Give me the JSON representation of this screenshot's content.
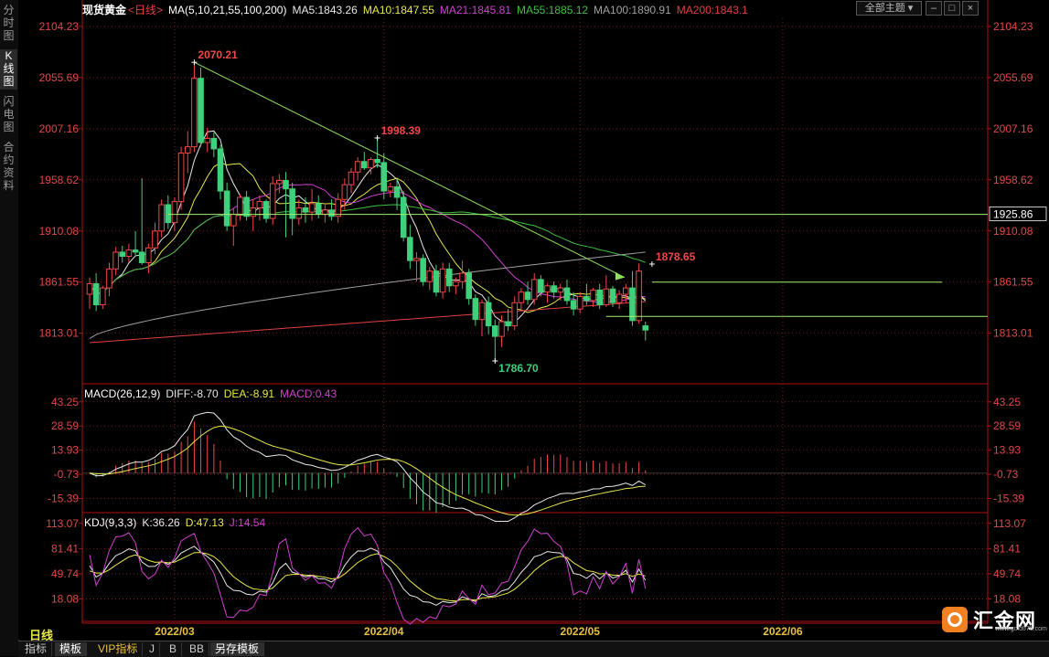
{
  "sidebar": {
    "tabs": [
      "分时图",
      "K线图",
      "闪电图",
      "合约资料"
    ],
    "active": 1
  },
  "header": {
    "symbol": "现货黄金",
    "period": "<日线>",
    "ma_label": "MA(5,10,21,55,100,200)",
    "ma_items": [
      {
        "text": "MA5:1843.26",
        "color": "#e8e8e8"
      },
      {
        "text": "MA10:1847.55",
        "color": "#e8e84a"
      },
      {
        "text": "MA21:1845.81",
        "color": "#d040d0"
      },
      {
        "text": "MA55:1885.12",
        "color": "#40c040"
      },
      {
        "text": "MA100:1890.91",
        "color": "#a0a0a0"
      },
      {
        "text": "MA200:1843.1",
        "color": "#e04040"
      }
    ],
    "theme_button": "全部主题",
    "window_buttons": [
      "–",
      "□",
      "×"
    ]
  },
  "colors": {
    "up": "#f04848",
    "down": "#3ed07a",
    "grid": "#7a1a1a",
    "axis": "#b01010",
    "priceLabel": "#e04848",
    "trend": "#8ee060",
    "level": "#a0f070"
  },
  "chart_data": [
    {
      "type": "candlestick",
      "title": "现货黄金 <日线>",
      "y_ticks": [
        2104.23,
        2055.69,
        2007.16,
        1958.62,
        1910.08,
        1861.55,
        1813.01
      ],
      "ylim": [
        1765,
        2112
      ],
      "x_ticks": [
        "2022/03",
        "2022/04",
        "2022/05",
        "2022/06"
      ],
      "x_tick_index": [
        13,
        45,
        75,
        106
      ],
      "candles": [
        [
          1850,
          1866,
          1836,
          1860
        ],
        [
          1860,
          1870,
          1834,
          1840
        ],
        [
          1840,
          1858,
          1836,
          1856
        ],
        [
          1856,
          1880,
          1848,
          1874
        ],
        [
          1874,
          1895,
          1868,
          1890
        ],
        [
          1890,
          1896,
          1880,
          1886
        ],
        [
          1886,
          1898,
          1880,
          1892
        ],
        [
          1892,
          1910,
          1886,
          1890
        ],
        [
          1890,
          1960,
          1878,
          1880
        ],
        [
          1880,
          1898,
          1870,
          1894
        ],
        [
          1894,
          1918,
          1888,
          1910
        ],
        [
          1910,
          1940,
          1904,
          1935
        ],
        [
          1935,
          1944,
          1912,
          1918
        ],
        [
          1918,
          1942,
          1910,
          1938
        ],
        [
          1938,
          1990,
          1930,
          1984
        ],
        [
          1984,
          2005,
          1965,
          1990
        ],
        [
          1990,
          2070,
          1985,
          2055
        ],
        [
          2055,
          2065,
          1990,
          1994
        ],
        [
          1994,
          2008,
          1985,
          1998
        ],
        [
          1998,
          2004,
          1980,
          1988
        ],
        [
          1988,
          1992,
          1940,
          1948
        ],
        [
          1948,
          1956,
          1910,
          1915
        ],
        [
          1915,
          1932,
          1896,
          1926
        ],
        [
          1926,
          1945,
          1920,
          1942
        ],
        [
          1942,
          1948,
          1920,
          1924
        ],
        [
          1924,
          1940,
          1910,
          1932
        ],
        [
          1932,
          1944,
          1920,
          1938
        ],
        [
          1938,
          1940,
          1918,
          1922
        ],
        [
          1922,
          1962,
          1916,
          1955
        ],
        [
          1955,
          1964,
          1946,
          1958
        ],
        [
          1958,
          1966,
          1904,
          1950
        ],
        [
          1950,
          1956,
          1906,
          1922
        ],
        [
          1922,
          1940,
          1916,
          1932
        ],
        [
          1932,
          1942,
          1918,
          1928
        ],
        [
          1928,
          1950,
          1920,
          1936
        ],
        [
          1936,
          1944,
          1922,
          1926
        ],
        [
          1926,
          1936,
          1918,
          1930
        ],
        [
          1930,
          1940,
          1920,
          1924
        ],
        [
          1924,
          1946,
          1918,
          1940
        ],
        [
          1940,
          1960,
          1930,
          1954
        ],
        [
          1954,
          1970,
          1946,
          1966
        ],
        [
          1966,
          1980,
          1958,
          1976
        ],
        [
          1976,
          1985,
          1968,
          1970
        ],
        [
          1970,
          1980,
          1964,
          1978
        ],
        [
          1978,
          1998,
          1970,
          1975
        ],
        [
          1975,
          1984,
          1940,
          1948
        ],
        [
          1948,
          1956,
          1942,
          1952
        ],
        [
          1952,
          1960,
          1930,
          1942
        ],
        [
          1942,
          1948,
          1900,
          1904
        ],
        [
          1904,
          1916,
          1874,
          1882
        ],
        [
          1882,
          1890,
          1862,
          1884
        ],
        [
          1884,
          1888,
          1858,
          1862
        ],
        [
          1862,
          1876,
          1854,
          1872
        ],
        [
          1872,
          1878,
          1848,
          1852
        ],
        [
          1852,
          1880,
          1846,
          1874
        ],
        [
          1874,
          1880,
          1852,
          1858
        ],
        [
          1858,
          1866,
          1850,
          1862
        ],
        [
          1862,
          1882,
          1855,
          1870
        ],
        [
          1870,
          1874,
          1840,
          1846
        ],
        [
          1846,
          1850,
          1820,
          1826
        ],
        [
          1826,
          1845,
          1810,
          1842
        ],
        [
          1842,
          1848,
          1812,
          1820
        ],
        [
          1820,
          1826,
          1786,
          1810
        ],
        [
          1810,
          1830,
          1800,
          1824
        ],
        [
          1824,
          1836,
          1815,
          1820
        ],
        [
          1820,
          1848,
          1816,
          1842
        ],
        [
          1842,
          1856,
          1836,
          1852
        ],
        [
          1852,
          1862,
          1840,
          1845
        ],
        [
          1845,
          1870,
          1840,
          1864
        ],
        [
          1864,
          1868,
          1848,
          1852
        ],
        [
          1852,
          1860,
          1842,
          1858
        ],
        [
          1858,
          1862,
          1846,
          1852
        ],
        [
          1852,
          1860,
          1844,
          1856
        ],
        [
          1856,
          1864,
          1840,
          1844
        ],
        [
          1844,
          1852,
          1830,
          1836
        ],
        [
          1836,
          1852,
          1832,
          1848
        ],
        [
          1848,
          1860,
          1840,
          1844
        ],
        [
          1844,
          1856,
          1838,
          1854
        ],
        [
          1854,
          1860,
          1836,
          1840
        ],
        [
          1840,
          1868,
          1838,
          1855
        ],
        [
          1855,
          1858,
          1838,
          1842
        ],
        [
          1842,
          1854,
          1836,
          1850
        ],
        [
          1850,
          1860,
          1842,
          1856
        ],
        [
          1856,
          1872,
          1820,
          1825
        ],
        [
          1825,
          1879,
          1822,
          1872
        ],
        [
          1820,
          1824,
          1806,
          1816
        ]
      ],
      "annotations": [
        {
          "label": "2070.21",
          "index": 16,
          "value": 2070.21,
          "color": "#f04848"
        },
        {
          "label": "1998.39",
          "index": 44,
          "value": 1998.39,
          "color": "#f04848"
        },
        {
          "label": "1786.70",
          "index": 62,
          "value": 1786.7,
          "color": "#3ed07a"
        },
        {
          "label": "1878.65",
          "index": 86,
          "value": 1878.65,
          "color": "#f04848"
        }
      ],
      "level_label": "1925.86",
      "level_value": 1925.86
    },
    {
      "type": "line",
      "title": "MACD(26,12,9)",
      "legend": [
        {
          "text": "DIFF:-8.70",
          "color": "#e8e8e8"
        },
        {
          "text": "DEA:-8.91",
          "color": "#e8e84a"
        },
        {
          "text": "MACD:0.43",
          "color": "#d040d0"
        }
      ],
      "y_ticks": [
        43.25,
        28.59,
        13.93,
        -0.73,
        -15.39
      ],
      "ylim": [
        -24,
        52
      ]
    },
    {
      "type": "line",
      "title": "KDJ(9,3,3)",
      "legend": [
        {
          "text": "K:36.26",
          "color": "#e8e8e8"
        },
        {
          "text": "D:47.13",
          "color": "#e8e84a"
        },
        {
          "text": "J:14.54",
          "color": "#d040d0"
        }
      ],
      "y_ticks": [
        113.07,
        81.41,
        49.74,
        18.08
      ],
      "ylim": [
        -10,
        122
      ]
    }
  ],
  "bottom_tabs": [
    "指标",
    "模板",
    "VIP指标",
    "J",
    "B",
    "BB",
    "另存模板"
  ],
  "period_tab": "日线",
  "logo": {
    "name": "汇金网",
    "url_text": "www.gold678.com"
  }
}
